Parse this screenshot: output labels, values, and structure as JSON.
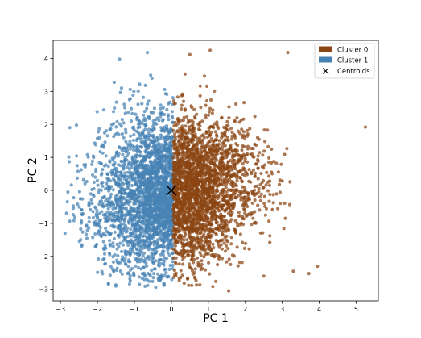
{
  "chart_data": {
    "type": "scatter",
    "xlabel": "PC 1",
    "ylabel": "PC 2",
    "xlim": [
      -3.2,
      5.6
    ],
    "ylim": [
      -3.35,
      4.55
    ],
    "xticks": [
      -3,
      -2,
      -1,
      0,
      1,
      2,
      3,
      4,
      5
    ],
    "yticks": [
      -3,
      -2,
      -1,
      0,
      1,
      2,
      3,
      4
    ],
    "legend_position": "upper right",
    "series": [
      {
        "name": "Cluster 0",
        "color": "#8b4513",
        "marker": "circle",
        "approx_count": 2500,
        "x_range": [
          0.05,
          5.25
        ],
        "y_range": [
          -3.05,
          4.25
        ],
        "outliers": [
          [
            5.25,
            1.92
          ],
          [
            3.95,
            -2.3
          ],
          [
            3.72,
            -2.52
          ],
          [
            3.15,
            4.18
          ],
          [
            1.05,
            4.25
          ],
          [
            0.5,
            4.12
          ],
          [
            1.55,
            -3.05
          ],
          [
            0.55,
            -2.88
          ],
          [
            2.5,
            -2.6
          ],
          [
            3.3,
            -2.45
          ]
        ]
      },
      {
        "name": "Cluster 1",
        "color": "#4682b4",
        "marker": "circle",
        "approx_count": 2500,
        "x_range": [
          -2.85,
          0.05
        ],
        "y_range": [
          -2.85,
          4.2
        ],
        "outliers": [
          [
            -0.2,
            -2.85
          ],
          [
            -2.8,
            -0.05
          ],
          [
            -2.75,
            1.9
          ],
          [
            -1.4,
            3.98
          ],
          [
            -0.65,
            4.18
          ]
        ]
      }
    ],
    "centroids": {
      "name": "Centroids",
      "marker": "x",
      "color": "#000000",
      "points": [
        [
          0.0,
          0.0
        ]
      ]
    }
  },
  "legend": {
    "items": [
      {
        "label": "Cluster 0",
        "color": "#8b4513"
      },
      {
        "label": "Cluster 1",
        "color": "#4682b4"
      },
      {
        "label": "Centroids",
        "color": "#000000"
      }
    ]
  }
}
